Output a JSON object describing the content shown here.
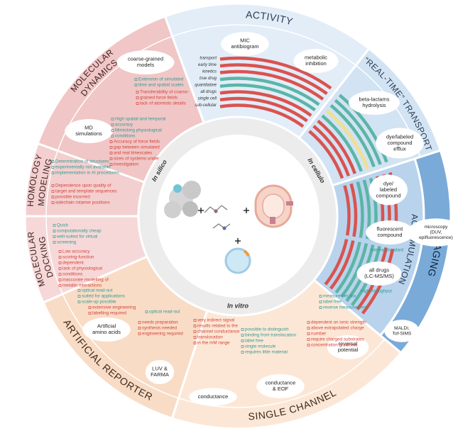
{
  "center": {
    "in_silico": "In silico",
    "in_cellulo": "In cellulo",
    "in_vitro": "In vitro"
  },
  "legend": [
    "transport",
    "early time",
    "kinetics",
    "true drug",
    "quantitative",
    "all drugs",
    "single cell",
    "sub-cellular"
  ],
  "sections": [
    {
      "title": [
        "ACTIVITY"
      ],
      "methods": [
        [
          "MIC",
          "antibiogram"
        ],
        [
          "metabolic",
          "inhibition"
        ]
      ],
      "notes": []
    },
    {
      "title": [
        "“REAL-TIME” TRANSPORT"
      ],
      "methods": [
        [
          "beta-lactams",
          "hydrolysis"
        ],
        [
          "dye/labeled",
          "compound",
          "efflux"
        ]
      ],
      "notes": []
    },
    {
      "title": [
        "ACCUMULATION"
      ],
      "methods": [
        [
          "dye/",
          "labeled",
          "compound"
        ],
        [
          "fluorescent",
          "compound"
        ],
        [
          "all drugs",
          "(LC-MS/MS)"
        ]
      ],
      "notes": [
        {
          "color": "#2f9c94",
          "lines": [
            "internal standard"
          ]
        },
        {
          "color": "#2f9c94",
          "lines": [
            "high-throughput"
          ]
        }
      ]
    },
    {
      "title": [
        "IMAGING"
      ],
      "methods": [
        [
          "microscopy",
          "(DUV,",
          "epifluorescence)"
        ],
        [
          "MALDI,",
          "Tof-SIMS"
        ]
      ],
      "notes": []
    },
    {
      "title": [
        "SINGLE CHANNEL"
      ],
      "methods": [
        [
          "reversal",
          "potential"
        ],
        [
          "conductance",
          "& EOF"
        ],
        [
          "conductance"
        ]
      ],
      "notes": [
        {
          "color": "#2f9c94",
          "lines": [
            "measure net flux",
            "label free",
            "reverse measurement"
          ]
        },
        {
          "color": "#d5433b",
          "lines": [
            "dependent on ionic strength",
            "above extrapolated charge",
            "number",
            "require charged substrates",
            "concentration gradients"
          ]
        },
        {
          "color": "#2f9c94",
          "lines": [
            "possible to distinguish",
            "binding from translocation",
            "label free",
            "single molecule",
            "requires little material"
          ]
        },
        {
          "color": "#d5433b",
          "lines": [
            "very indirect signal",
            "results related to the",
            "channel conductance",
            "translocation",
            "in the mM range"
          ]
        }
      ]
    },
    {
      "title": [
        "ARTIFICIAL REPORTER"
      ],
      "methods": [
        [
          "Artificial",
          "amino acids"
        ],
        [
          "LUV &",
          "FARMA"
        ]
      ],
      "notes": [
        {
          "color": "#2f9c94",
          "lines": [
            "optical read-out",
            "suited for applications",
            "scale-up possible"
          ]
        },
        {
          "color": "#d5433b",
          "lines": [
            "extensive engineering",
            "labelling required"
          ]
        },
        {
          "color": "#2f9c94",
          "lines": [
            "optical read-out"
          ]
        },
        {
          "color": "#d5433b",
          "lines": [
            "needs preparation",
            "synthesis needed",
            "engineering required"
          ]
        }
      ]
    },
    {
      "title": [
        "MOLECULAR",
        "DOCKING"
      ],
      "methods": [],
      "notes": [
        {
          "color": "#2f9c94",
          "lines": [
            "Quick",
            "computationally cheap",
            "well-suited for virtual",
            "screening"
          ]
        },
        {
          "color": "#d5433b",
          "lines": [
            "Low accuracy",
            "scoring-function",
            "dependent",
            "lack of physiological",
            "conditions",
            "inaccurate modelling of",
            "metallic interactions"
          ]
        }
      ]
    },
    {
      "title": [
        "HOMOLOGY",
        "MODELING"
      ],
      "methods": [],
      "notes": [
        {
          "color": "#2f9c94",
          "lines": [
            "Determination of structures",
            "experimentally not available",
            "implementation in AI procedures"
          ]
        },
        {
          "color": "#d5433b",
          "lines": [
            "Dependence upon quality of",
            "target and template sequences",
            "possible incorrect",
            "sidechain rotamer positions"
          ]
        }
      ]
    },
    {
      "title": [
        "MOLECULAR",
        "DYNAMICS"
      ],
      "methods": [
        [
          "MD",
          "simulations"
        ],
        [
          "coarse-grained",
          "models"
        ]
      ],
      "notes": [
        {
          "color": "#2f9c94",
          "lines": [
            "High spatial and temporal",
            "accuracy",
            "Mimicking physiological",
            "conditions"
          ]
        },
        {
          "color": "#d5433b",
          "lines": [
            "Accuracy of force fields",
            "gap between simulated",
            "and real timescales",
            "sizes of systems under",
            "investigation"
          ]
        },
        {
          "color": "#2f9c94",
          "lines": [
            "Extension of simulated",
            "time and spatial scales"
          ]
        },
        {
          "color": "#d5433b",
          "lines": [
            "Transferability of coarse-",
            "grained force fields",
            "lack of atomistic details"
          ]
        }
      ]
    }
  ]
}
